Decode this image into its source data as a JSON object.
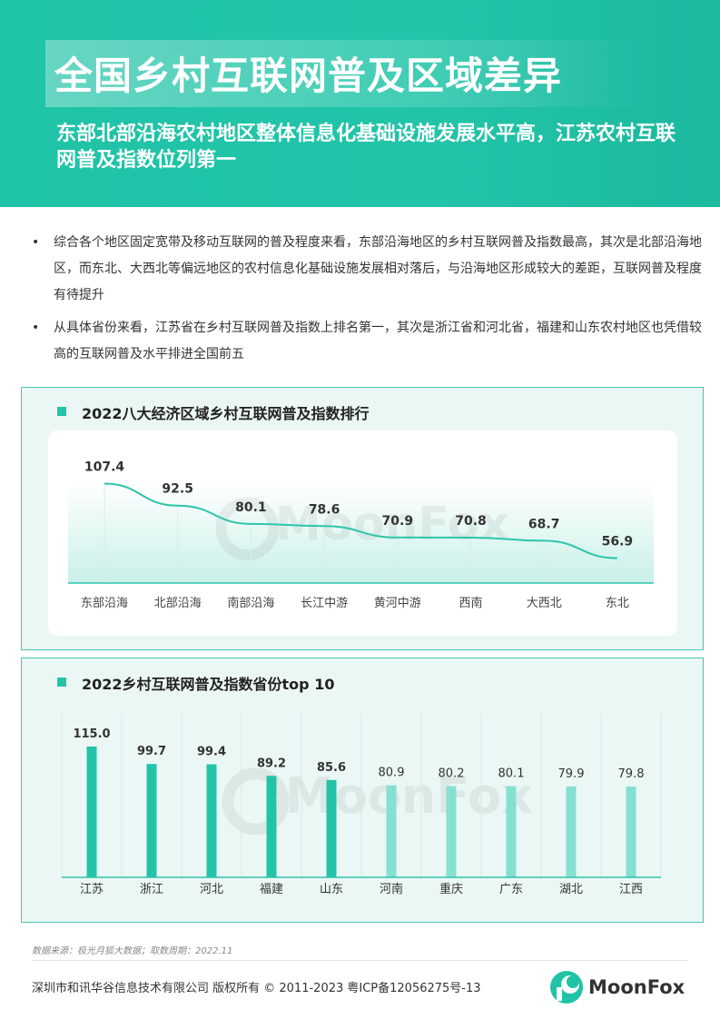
{
  "header": {
    "title": "全国乡村互联网普及区域差异",
    "subtitle": "东部北部沿海农村地区整体信息化基础设施发展水平高，江苏农村互联网普及指数位列第一"
  },
  "bullets": [
    "综合各个地区固定宽带及移动互联网的普及程度来看，东部沿海地区的乡村互联网普及指数最高，其次是北部沿海地区，而东北、大西北等偏远地区的农村信息化基础设施发展相对落后，与沿海地区形成较大的差距，互联网普及程度有待提升",
    "从具体省份来看，江苏省在乡村互联网普及指数上排名第一，其次是浙江省和河北省，福建和山东农村地区也凭借较高的互联网普及水平排进全国前五"
  ],
  "bullet_marker": "•",
  "watermark": "MoonFox",
  "chart_data": [
    {
      "type": "line",
      "title": "2022八大经济区域乡村互联网普及指数排行",
      "categories": [
        "东部沿海",
        "北部沿海",
        "南部沿海",
        "长江中游",
        "黄河中游",
        "西南",
        "大西北",
        "东北"
      ],
      "values": [
        107.4,
        92.5,
        80.1,
        78.6,
        70.9,
        70.8,
        68.7,
        56.9
      ],
      "value_labels": [
        "107.4",
        "92.5",
        "80.1",
        "78.6",
        "70.9",
        "70.8",
        "68.7",
        "56.9"
      ],
      "ylim": [
        0,
        120
      ],
      "color": "#2ec4ab"
    },
    {
      "type": "bar",
      "title": "2022乡村互联网普及指数省份top 10",
      "categories": [
        "江苏",
        "浙江",
        "河北",
        "福建",
        "山东",
        "河南",
        "重庆",
        "广东",
        "湖北",
        "江西"
      ],
      "values": [
        115.0,
        99.7,
        99.4,
        89.2,
        85.6,
        80.9,
        80.2,
        80.1,
        79.9,
        79.8
      ],
      "value_labels": [
        "115.0",
        "99.7",
        "99.4",
        "89.2",
        "85.6",
        "80.9",
        "80.2",
        "80.1",
        "79.9",
        "79.8"
      ],
      "ylim": [
        0,
        115
      ],
      "colors": {
        "top5": "#22c4a8",
        "rest": "#86e0d1"
      }
    }
  ],
  "source": "数据来源：极光月狐大数据；取数周期：2022.11",
  "footer": {
    "copyright": "深圳市和讯华谷信息技术有限公司 版权所有 © 2011-2023 粤ICP备12056275号-13",
    "brand": "MoonFox"
  }
}
